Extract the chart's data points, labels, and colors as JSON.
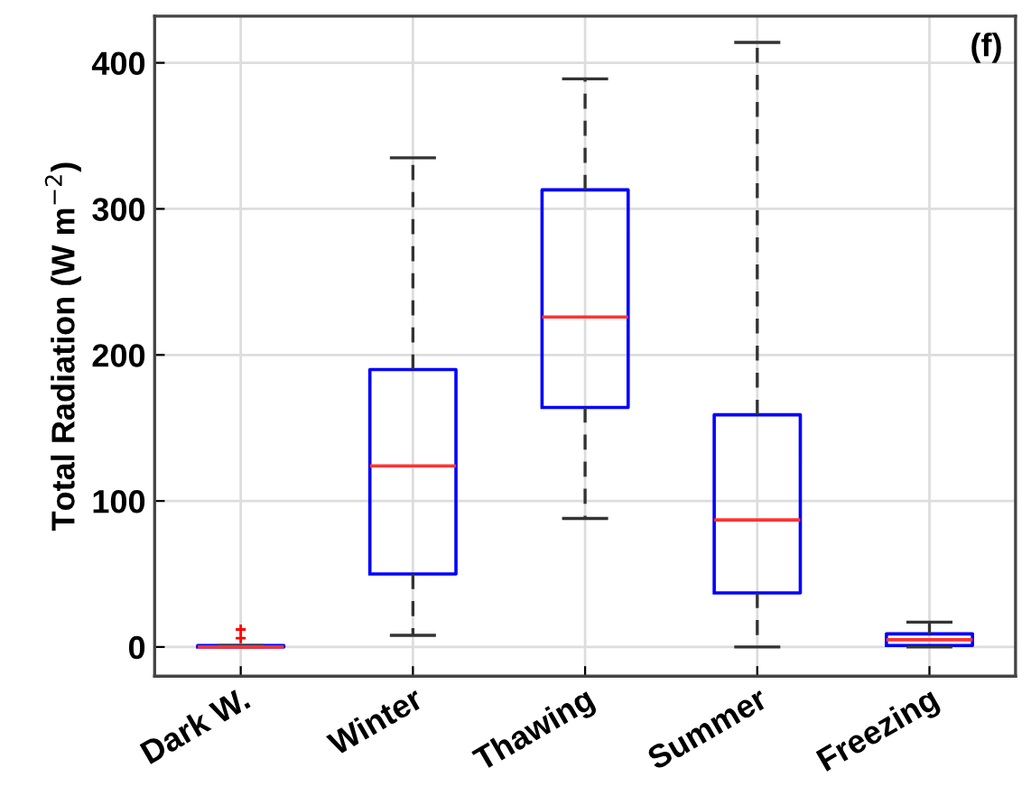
{
  "chart_data": {
    "type": "box",
    "ylabel": "Total Radiation (W m$^{−2}$)",
    "annotations": [
      "(f)"
    ],
    "categories": [
      "Dark W.",
      "Winter",
      "Thawing",
      "Summer",
      "Freezing"
    ],
    "series": [
      {
        "color": "#0000ff",
        "boxes": [
          {
            "low": 0,
            "q1": 0,
            "median": 0,
            "q3": 1,
            "high": 1,
            "outliers": [
              6,
              12
            ]
          },
          {
            "low": 8,
            "q1": 50,
            "median": 124,
            "q3": 190,
            "high": 335
          },
          {
            "low": 88,
            "q1": 164,
            "median": 226,
            "q3": 313,
            "high": 389
          },
          {
            "low": 0,
            "q1": 37,
            "median": 87,
            "q3": 159,
            "high": 414
          },
          {
            "low": 0,
            "q1": 1,
            "median": 5,
            "q3": 9,
            "high": 17
          }
        ]
      }
    ],
    "ylim": [
      -20,
      432
    ],
    "yticks": [
      0,
      100,
      200,
      300,
      400
    ],
    "grid": true,
    "marker": "cross"
  }
}
